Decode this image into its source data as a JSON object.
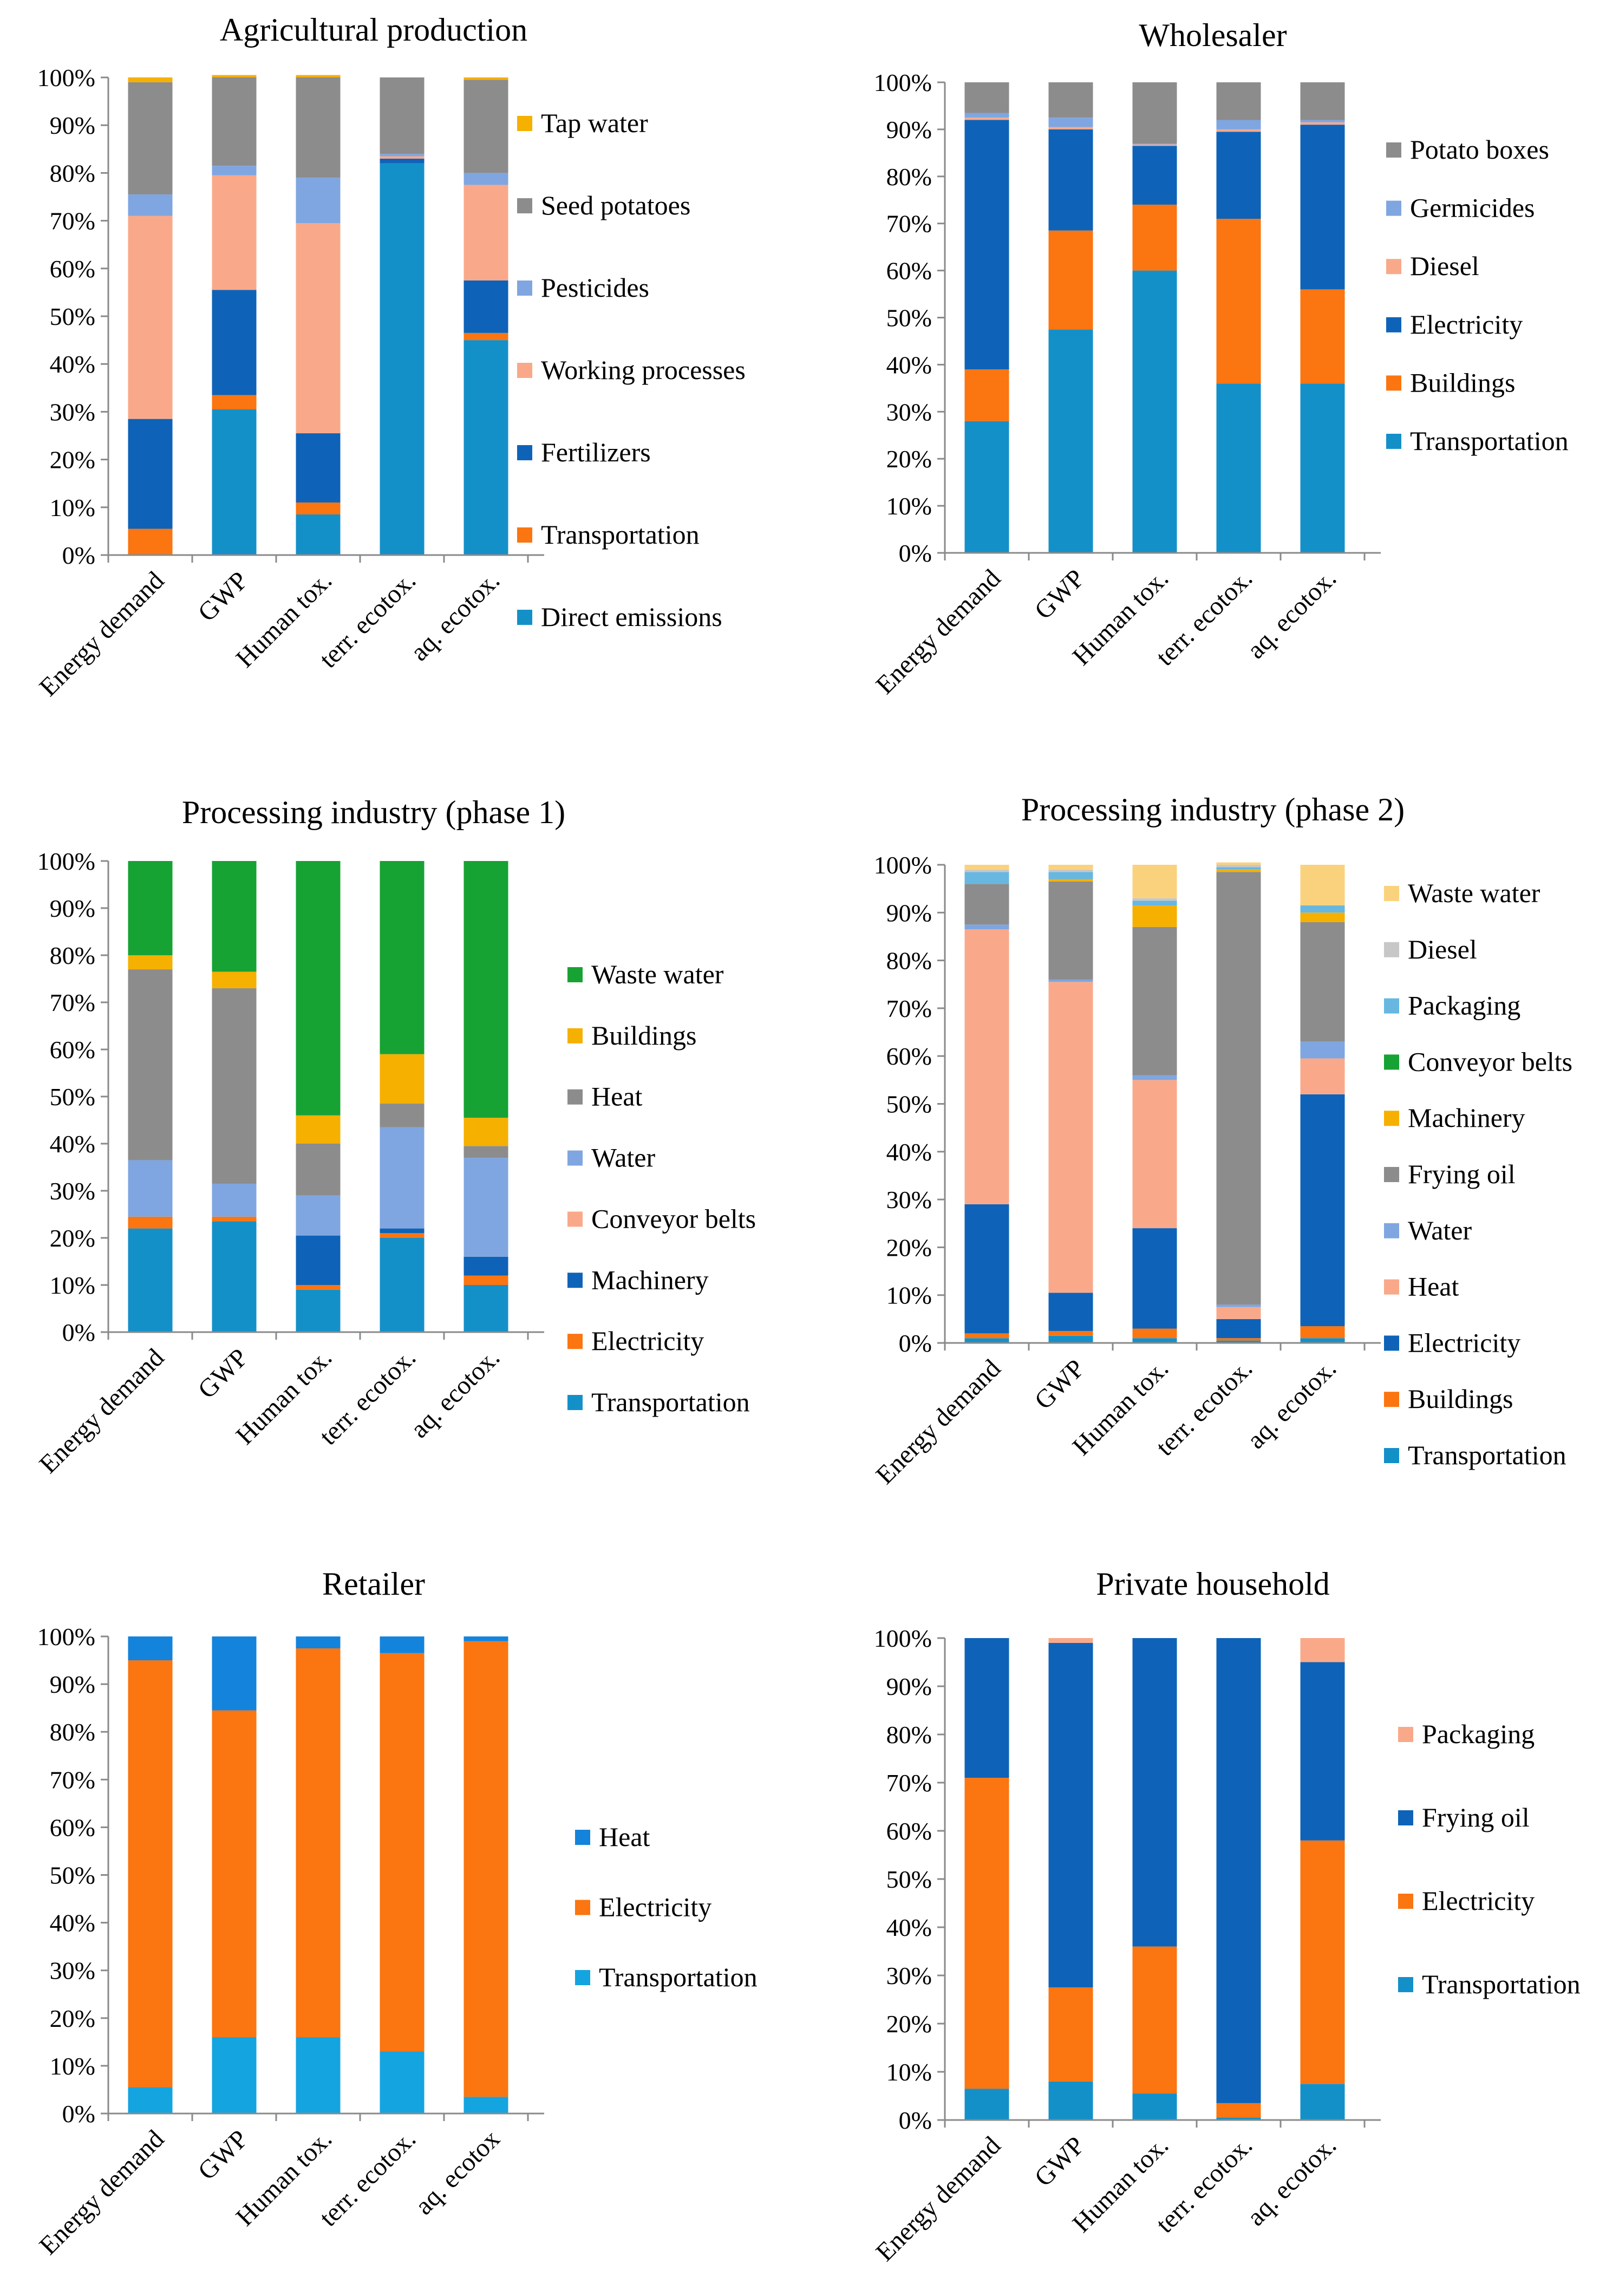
{
  "colors": {
    "tap_water": "#F5B000",
    "seed_potatoes": "#8C8C8C",
    "pesticides": "#7FA6E0",
    "working_processes": "#F9A98A",
    "fertilizers": "#0E63B8",
    "transportation_orange": "#FB7511",
    "direct_emissions": "#1490C9",
    "waste_water_pale": "#FAD27D",
    "diesel_light": "#C7C7C7",
    "packaging_blue": "#67B7E1",
    "conveyor_green": "#17A234",
    "heat_bright_blue": "#1483DB",
    "light_cyan": "#14A4E0",
    "packaging_salmon": "#F9A98A"
  },
  "chart_data": [
    {
      "type": "bar",
      "stacked": true,
      "title": "Agricultural production",
      "categories": [
        "Energy demand",
        "GWP",
        "Human tox.",
        "terr. ecotox.",
        "aq. ecotox."
      ],
      "ylim": [
        0,
        100
      ],
      "ytick_labels": [
        "0%",
        "10%",
        "20%",
        "30%",
        "40%",
        "50%",
        "60%",
        "70%",
        "80%",
        "90%",
        "100%"
      ],
      "legend_position": "right",
      "series": [
        {
          "name": "Direct emissions",
          "color": "#1490C9",
          "values": [
            0,
            30.5,
            8.5,
            82,
            45
          ]
        },
        {
          "name": "Transportation",
          "color": "#FB7511",
          "values": [
            5.5,
            3,
            2.5,
            0,
            1.5
          ]
        },
        {
          "name": "Fertilizers",
          "color": "#0E63B8",
          "values": [
            23,
            22,
            14.5,
            1,
            11
          ]
        },
        {
          "name": "Working processes",
          "color": "#F9A98A",
          "values": [
            42.5,
            24,
            44,
            0.5,
            20
          ]
        },
        {
          "name": "Pesticides",
          "color": "#7FA6E0",
          "values": [
            4.5,
            2,
            9.5,
            0.5,
            2.5
          ]
        },
        {
          "name": "Seed potatoes",
          "color": "#8C8C8C",
          "values": [
            23.5,
            18.5,
            21,
            16,
            19.5
          ]
        },
        {
          "name": "Tap water",
          "color": "#F5B000",
          "values": [
            1,
            0.5,
            0.5,
            0,
            0.5
          ]
        }
      ]
    },
    {
      "type": "bar",
      "stacked": true,
      "title": "Wholesaler",
      "categories": [
        "Energy demand",
        "GWP",
        "Human tox.",
        "terr. ecotox.",
        "aq. ecotox."
      ],
      "ylim": [
        0,
        100
      ],
      "ytick_labels": [
        "0%",
        "10%",
        "20%",
        "30%",
        "40%",
        "50%",
        "60%",
        "70%",
        "80%",
        "90%",
        "100%"
      ],
      "legend_position": "right",
      "series": [
        {
          "name": "Transportation",
          "color": "#1490C9",
          "values": [
            28,
            47.5,
            60,
            36,
            36
          ]
        },
        {
          "name": "Buildings",
          "color": "#FB7511",
          "values": [
            11,
            21,
            14,
            35,
            20
          ]
        },
        {
          "name": "Electricity",
          "color": "#0E63B8",
          "values": [
            53,
            21.5,
            12.5,
            18.5,
            35
          ]
        },
        {
          "name": "Diesel",
          "color": "#F9A98A",
          "values": [
            0.5,
            0.5,
            0.3,
            0.5,
            0.5
          ]
        },
        {
          "name": "Germicides",
          "color": "#7FA6E0",
          "values": [
            1,
            2,
            0.2,
            2,
            0.5
          ]
        },
        {
          "name": "Potato boxes",
          "color": "#8C8C8C",
          "values": [
            6.5,
            7.5,
            13,
            8,
            8
          ]
        }
      ]
    },
    {
      "type": "bar",
      "stacked": true,
      "title": "Processing industry (phase 1)",
      "categories": [
        "Energy demand",
        "GWP",
        "Human tox.",
        "terr. ecotox.",
        "aq. ecotox."
      ],
      "ylim": [
        0,
        100
      ],
      "ytick_labels": [
        "0%",
        "10%",
        "20%",
        "30%",
        "40%",
        "50%",
        "60%",
        "70%",
        "80%",
        "90%",
        "100%"
      ],
      "legend_position": "right",
      "series": [
        {
          "name": "Transportation",
          "color": "#1490C9",
          "values": [
            22,
            23.5,
            9,
            20,
            10
          ]
        },
        {
          "name": "Electricity",
          "color": "#FB7511",
          "values": [
            2.5,
            1,
            1,
            1,
            2
          ]
        },
        {
          "name": "Machinery",
          "color": "#0E63B8",
          "values": [
            0,
            0,
            10.5,
            1,
            4
          ]
        },
        {
          "name": "Conveyor belts",
          "color": "#F9A98A",
          "values": [
            0,
            0,
            0,
            0,
            0
          ]
        },
        {
          "name": "Water",
          "color": "#7FA6E0",
          "values": [
            12,
            7,
            8.5,
            21.5,
            21
          ]
        },
        {
          "name": "Heat",
          "color": "#8C8C8C",
          "values": [
            40.5,
            41.5,
            11,
            5,
            2.5
          ]
        },
        {
          "name": "Buildings",
          "color": "#F5B000",
          "values": [
            3,
            3.5,
            6,
            10.5,
            6
          ]
        },
        {
          "name": "Waste water",
          "color": "#17A234",
          "values": [
            20,
            23.5,
            54,
            41,
            54.5
          ]
        }
      ]
    },
    {
      "type": "bar",
      "stacked": true,
      "title": "Processing industry (phase 2)",
      "categories": [
        "Energy demand",
        "GWP",
        "Human tox.",
        "terr. ecotox.",
        "aq. ecotox."
      ],
      "ylim": [
        0,
        100
      ],
      "ytick_labels": [
        "0%",
        "10%",
        "20%",
        "30%",
        "40%",
        "50%",
        "60%",
        "70%",
        "80%",
        "90%",
        "100%"
      ],
      "legend_position": "right",
      "series": [
        {
          "name": "Transportation",
          "color": "#1490C9",
          "values": [
            1,
            1.5,
            1,
            0.5,
            1
          ]
        },
        {
          "name": "Buildings",
          "color": "#FB7511",
          "values": [
            1,
            1,
            2,
            0.5,
            2.5
          ]
        },
        {
          "name": "Electricity",
          "color": "#0E63B8",
          "values": [
            27,
            8,
            21,
            4,
            48.5
          ]
        },
        {
          "name": "Heat",
          "color": "#F9A98A",
          "values": [
            57.5,
            65,
            31,
            2.5,
            7.5
          ]
        },
        {
          "name": "Water",
          "color": "#7FA6E0",
          "values": [
            1,
            0.5,
            1,
            0.5,
            3.5
          ]
        },
        {
          "name": "Frying oil",
          "color": "#8C8C8C",
          "values": [
            8.5,
            20.5,
            31,
            90.5,
            25
          ]
        },
        {
          "name": "Machinery",
          "color": "#F5B000",
          "values": [
            0,
            0.5,
            4.5,
            0.5,
            2
          ]
        },
        {
          "name": "Conveyor belts",
          "color": "#17A234",
          "values": [
            0,
            0,
            0,
            0,
            0
          ]
        },
        {
          "name": "Packaging",
          "color": "#67B7E1",
          "values": [
            2.5,
            1.5,
            1,
            0.5,
            1.5
          ]
        },
        {
          "name": "Diesel",
          "color": "#C7C7C7",
          "values": [
            0.5,
            0.5,
            0.5,
            0.5,
            0
          ]
        },
        {
          "name": "Waste water",
          "color": "#FAD27D",
          "values": [
            1,
            1,
            7,
            0.5,
            8.5
          ]
        }
      ]
    },
    {
      "type": "bar",
      "stacked": true,
      "title": "Retailer",
      "categories": [
        "Energy demand",
        "GWP",
        "Human tox.",
        "terr. ecotox.",
        "aq. ecotox"
      ],
      "ylim": [
        0,
        100
      ],
      "ytick_labels": [
        "0%",
        "10%",
        "20%",
        "30%",
        "40%",
        "50%",
        "60%",
        "70%",
        "80%",
        "90%",
        "100%"
      ],
      "legend_position": "right",
      "series": [
        {
          "name": "Transportation",
          "color": "#14A4E0",
          "values": [
            5.5,
            16,
            16,
            13,
            3.5
          ]
        },
        {
          "name": "Electricity",
          "color": "#FB7511",
          "values": [
            89.5,
            68.5,
            81.5,
            83.5,
            95.5
          ]
        },
        {
          "name": "Heat",
          "color": "#1483DB",
          "values": [
            5,
            15.5,
            2.5,
            3.5,
            1
          ]
        }
      ]
    },
    {
      "type": "bar",
      "stacked": true,
      "title": "Private household",
      "categories": [
        "Energy demand",
        "GWP",
        "Human tox.",
        "terr. ecotox.",
        "aq. ecotox."
      ],
      "ylim": [
        0,
        100
      ],
      "ytick_labels": [
        "0%",
        "10%",
        "20%",
        "30%",
        "40%",
        "50%",
        "60%",
        "70%",
        "80%",
        "90%",
        "100%"
      ],
      "legend_position": "right",
      "series": [
        {
          "name": "Transportation",
          "color": "#1490C9",
          "values": [
            6.5,
            8,
            5.5,
            0.5,
            7.5
          ]
        },
        {
          "name": "Electricity",
          "color": "#FB7511",
          "values": [
            64.5,
            19.5,
            30.5,
            3,
            50.5
          ]
        },
        {
          "name": "Frying oil",
          "color": "#0E63B8",
          "values": [
            29,
            71.5,
            64,
            96.5,
            37
          ]
        },
        {
          "name": "Packaging",
          "color": "#F9A98A",
          "values": [
            0,
            1,
            0,
            0,
            5
          ]
        }
      ]
    }
  ]
}
